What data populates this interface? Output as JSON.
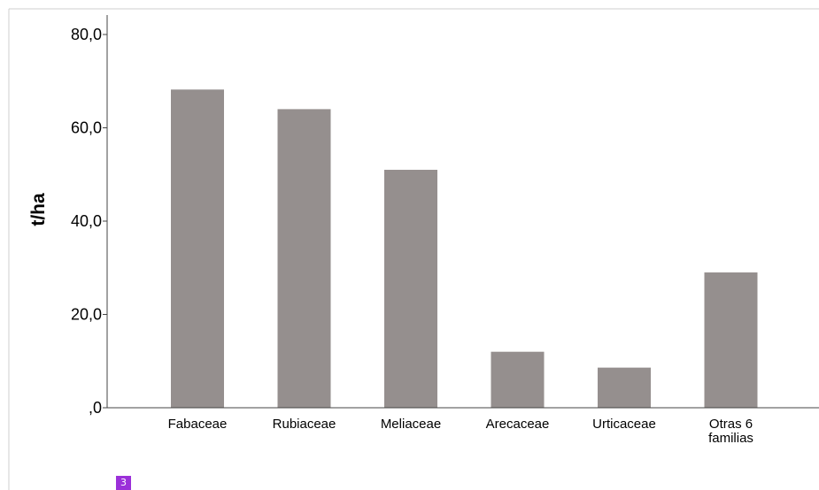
{
  "chart_data": {
    "type": "bar",
    "categories": [
      "Fabaceae",
      "Rubiaceae",
      "Meliaceae",
      "Arecaceae",
      "Urticaceae",
      "Otras 6 familias"
    ],
    "category_lines": [
      [
        "Fabaceae"
      ],
      [
        "Rubiaceae"
      ],
      [
        "Meliaceae"
      ],
      [
        "Arecaceae"
      ],
      [
        "Urticaceae"
      ],
      [
        "Otras 6",
        "familias"
      ]
    ],
    "values": [
      68.2,
      64.0,
      51.0,
      12.0,
      8.6,
      29.0
    ],
    "ylabel": "t/ha",
    "xlabel": "",
    "ylim": [
      0,
      80
    ],
    "yticks": [
      0,
      20,
      40,
      60,
      80
    ],
    "ytick_labels": [
      ",0",
      "20,0",
      "40,0",
      "60,0",
      "80,0"
    ],
    "bar_color": "#958f8e",
    "grid": false
  },
  "page_number": "3",
  "colors": {
    "badge": "#9b30d9",
    "frame": "#cfcfcf"
  }
}
